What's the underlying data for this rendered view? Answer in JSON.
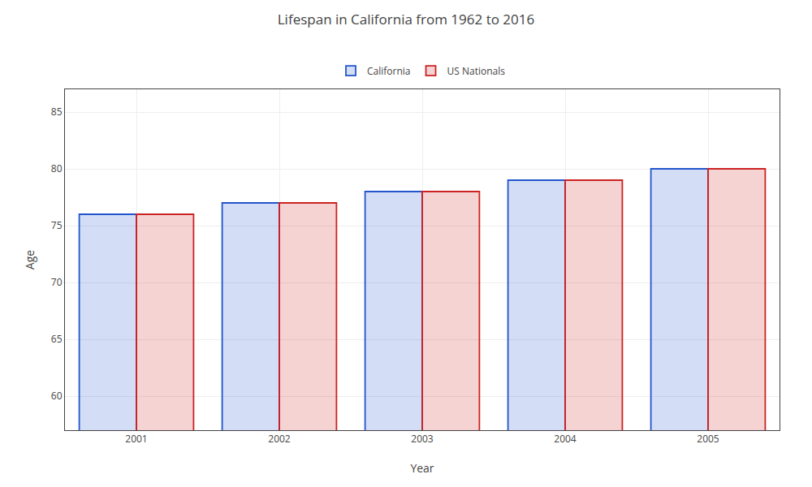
{
  "chart_data": {
    "type": "bar",
    "title": "Lifespan in California from 1962 to 2016",
    "xlabel": "Year",
    "ylabel": "Age",
    "categories": [
      "2001",
      "2002",
      "2003",
      "2004",
      "2005"
    ],
    "series": [
      {
        "name": "California",
        "color": "#2255cc",
        "values": [
          76,
          77,
          78,
          79,
          80
        ]
      },
      {
        "name": "US Nationals",
        "color": "#cc2222",
        "values": [
          76,
          77,
          78,
          79,
          80
        ]
      }
    ],
    "ylim": [
      57,
      87
    ],
    "yticks": [
      60,
      65,
      70,
      75,
      80,
      85
    ],
    "grid": true,
    "legend": "top"
  }
}
